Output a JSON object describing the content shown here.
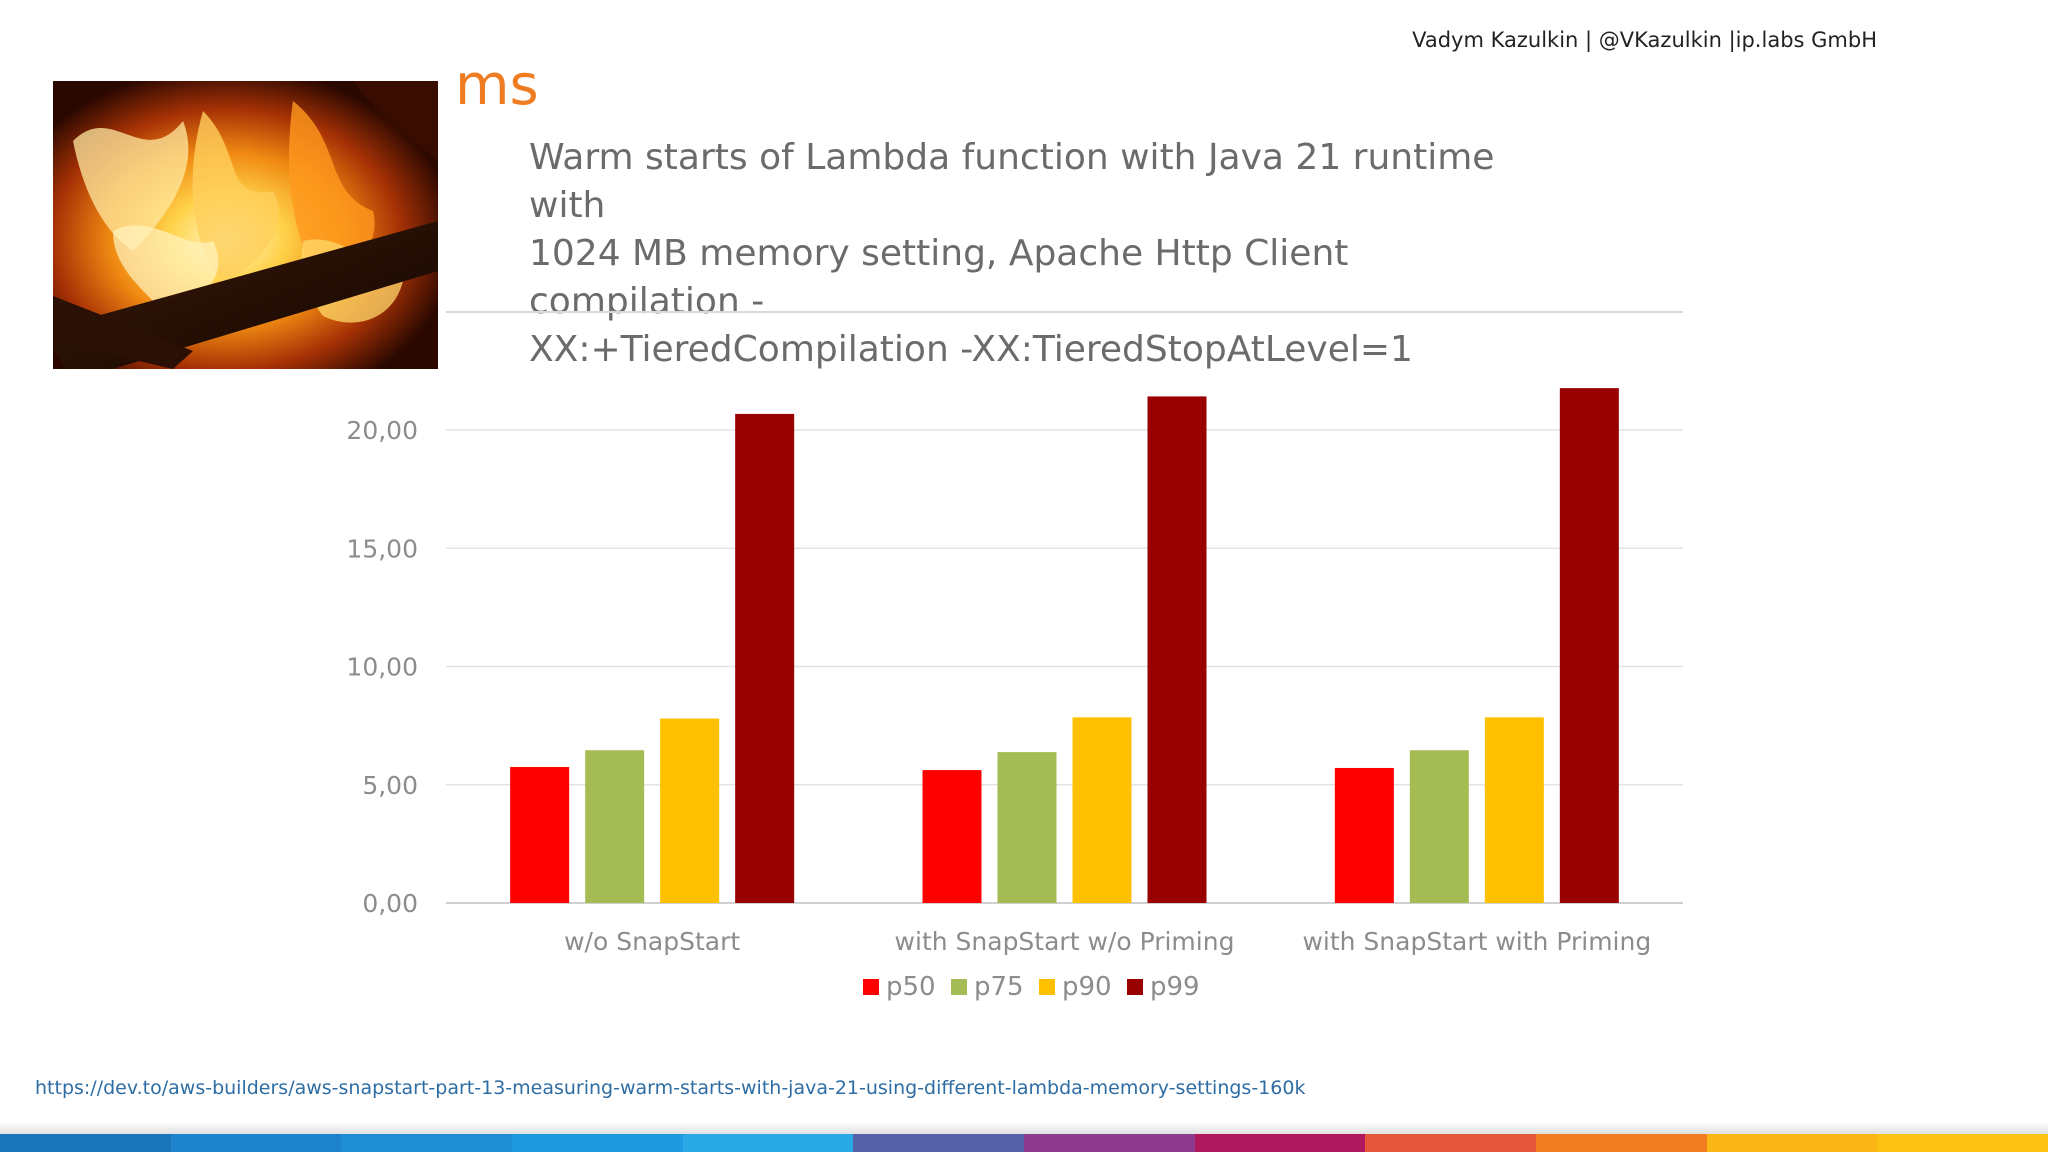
{
  "header": {
    "author_line": "Vadym Kazulkin | @VKazulkin |ip.labs GmbH"
  },
  "unit_title": "ms",
  "chart_title_lines": [
    "Warm starts of Lambda function with Java 21 runtime with",
    "1024 MB memory setting, Apache Http Client compilation -",
    "XX:+TieredCompilation -XX:TieredStopAtLevel=1"
  ],
  "chart_data": {
    "type": "bar",
    "title": "",
    "xlabel": "",
    "ylabel": "",
    "categories": [
      "w/o SnapStart",
      "with SnapStart w/o Priming",
      "with SnapStart with Priming"
    ],
    "series": [
      {
        "name": "p50",
        "color": "#ff0000",
        "values": [
          5.75,
          5.62,
          5.71
        ]
      },
      {
        "name": "p75",
        "color": "#a5bc55",
        "values": [
          6.46,
          6.38,
          6.46
        ]
      },
      {
        "name": "p90",
        "color": "#ffc000",
        "values": [
          7.8,
          7.85,
          7.85
        ]
      },
      {
        "name": "p99",
        "color": "#990000",
        "values": [
          20.68,
          21.42,
          21.77
        ]
      }
    ],
    "ylim": [
      0,
      20
    ],
    "yticks": [
      "0,00",
      "5,00",
      "10,00",
      "15,00",
      "20,00"
    ],
    "ytick_values": [
      0,
      5,
      10,
      15,
      20
    ],
    "grid": true,
    "legend_position": "bottom"
  },
  "footer": {
    "source_url": "https://dev.to/aws-builders/aws-snapstart-part-13-measuring-warm-starts-with-java-21-using-different-lambda-memory-settings-160k"
  },
  "bottom_bar_colors": [
    "#1b75bb",
    "#1d83cc",
    "#1f8fd5",
    "#1e9be0",
    "#29a9e6",
    "#5560a8",
    "#8e3a8e",
    "#b0185e",
    "#e4573d",
    "#f27c21",
    "#fbb514",
    "#fcc213"
  ]
}
